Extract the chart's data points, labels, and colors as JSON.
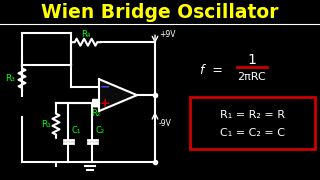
{
  "title": "Wien Bridge Oscillator",
  "title_color": "#FFFF00",
  "bg_color": "#000000",
  "circuit_color": "#FFFFFF",
  "green_color": "#00FF00",
  "formula_color": "#FFFFFF",
  "box_color": "#CC0000",
  "supply_pos": "+9V",
  "supply_neg": "-9V",
  "formula_f": "f =",
  "formula_top": "1",
  "formula_bot": "2πRC",
  "box_line1": "R₁ = R₂ = R",
  "box_line2": "C₁ = C₂ = C",
  "label_R3": "R₃",
  "label_R4": "R₄",
  "label_R1": "R₁",
  "label_R2": "R₂",
  "label_C1": "C₁",
  "label_C2": "C₂",
  "opamp_plus_color": "#CC0000",
  "opamp_minus_color": "#4444FF"
}
